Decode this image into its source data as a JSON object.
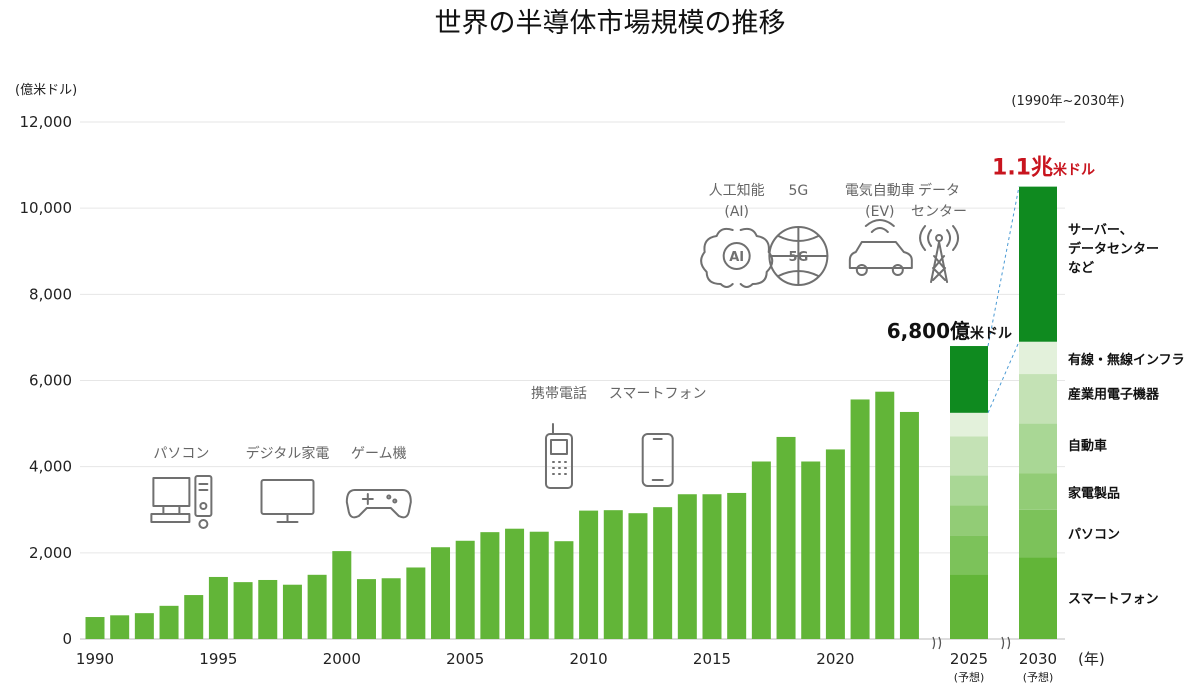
{
  "chart_data": {
    "type": "bar",
    "title": "世界の半導体市場規模の推移",
    "ylabel": "(億米ドル)",
    "xlabel": "(年)",
    "range_note": "(1990年~2030年)",
    "ylim": [
      0,
      12000
    ],
    "yticks": [
      "0",
      "2,000",
      "4,000",
      "6,000",
      "8,000",
      "10,000",
      "12,000"
    ],
    "ytick_values": [
      0,
      2000,
      4000,
      6000,
      8000,
      10000,
      12000
    ],
    "x": [
      1990,
      1991,
      1992,
      1993,
      1994,
      1995,
      1996,
      1997,
      1998,
      1999,
      2000,
      2001,
      2002,
      2003,
      2004,
      2005,
      2006,
      2007,
      2008,
      2009,
      2010,
      2011,
      2012,
      2013,
      2014,
      2015,
      2016,
      2017,
      2018,
      2019,
      2020,
      2021,
      2022,
      2023
    ],
    "values": [
      510,
      550,
      600,
      770,
      1020,
      1440,
      1320,
      1370,
      1260,
      1490,
      2040,
      1390,
      1410,
      1660,
      2130,
      2280,
      2480,
      2560,
      2490,
      2270,
      2980,
      2990,
      2920,
      3060,
      3360,
      3360,
      3390,
      4120,
      4690,
      4120,
      4400,
      5560,
      5740,
      5270
    ],
    "xticks": [
      "1990",
      "1995",
      "2000",
      "2005",
      "2010",
      "2015",
      "2020"
    ],
    "xtick_values": [
      1990,
      1995,
      2000,
      2005,
      2010,
      2015,
      2020
    ],
    "bar_color": "#62b538",
    "forecast": [
      {
        "year_label": "2025",
        "note": "(予想)",
        "total": 6800,
        "total_label": "6,800億",
        "total_unit": "米ドル",
        "segments": [
          {
            "name": "スマートフォン",
            "value": 1500,
            "color": "#62b538"
          },
          {
            "name": "パソコン",
            "value": 900,
            "color": "#7cc25a"
          },
          {
            "name": "家電製品",
            "value": 700,
            "color": "#92cc76"
          },
          {
            "name": "自動車",
            "value": 700,
            "color": "#a9d795"
          },
          {
            "name": "産業用電子機器",
            "value": 900,
            "color": "#c4e2b5"
          },
          {
            "name": "有線・無線インフラ",
            "value": 550,
            "color": "#e3f1db"
          },
          {
            "name": "サーバー、データセンターなど",
            "value": 1550,
            "color": "#0f8a1f"
          }
        ]
      },
      {
        "year_label": "2030",
        "note": "(予想)",
        "total": 10500,
        "total_label": "1.1兆",
        "total_unit": "米ドル",
        "segments": [
          {
            "name": "スマートフォン",
            "value": 1900,
            "color": "#62b538"
          },
          {
            "name": "パソコン",
            "value": 1100,
            "color": "#7cc25a"
          },
          {
            "name": "家電製品",
            "value": 850,
            "color": "#92cc76"
          },
          {
            "name": "自動車",
            "value": 1150,
            "color": "#a9d795"
          },
          {
            "name": "産業用電子機器",
            "value": 1150,
            "color": "#c4e2b5"
          },
          {
            "name": "有線・無線インフラ",
            "value": 750,
            "color": "#e3f1db"
          },
          {
            "name": "サーバー、データセンターなど",
            "value": 3600,
            "color": "#0f8a1f"
          }
        ]
      }
    ],
    "segment_labels": [
      {
        "lines": [
          "サーバー、",
          "データセンター",
          "など"
        ],
        "value_mid": 9100
      },
      {
        "lines": [
          "有線・無線インフラ"
        ],
        "value_mid": 6500
      },
      {
        "lines": [
          "産業用電子機器"
        ],
        "value_mid": 5700
      },
      {
        "lines": [
          "自動車"
        ],
        "value_mid": 4500
      },
      {
        "lines": [
          "家電製品"
        ],
        "value_mid": 3400
      },
      {
        "lines": [
          "パソコン"
        ],
        "value_mid": 2450
      },
      {
        "lines": [
          "スマートフォン"
        ],
        "value_mid": 950
      }
    ],
    "annotations": [
      {
        "name": "pc",
        "label": "パソコン",
        "icon": "desktop-pc-icon",
        "year": 1993.5
      },
      {
        "name": "digital-appliance",
        "label": "デジタル家電",
        "icon": "monitor-icon",
        "year": 1997.8
      },
      {
        "name": "game",
        "label": "ゲーム機",
        "icon": "gamepad-icon",
        "year": 2001.5
      },
      {
        "name": "mobile",
        "label": "携帯電話",
        "icon": "feature-phone-icon",
        "year": 2008.8
      },
      {
        "name": "smartphone",
        "label": "スマートフォン",
        "icon": "smartphone-icon",
        "year": 2012.8
      },
      {
        "name": "ai",
        "label": "人工知能",
        "sub": "(AI)",
        "icon": "ai-brain-icon",
        "year": 2016.0
      },
      {
        "name": "5g",
        "label": "5G",
        "sub": "",
        "icon": "5g-globe-icon",
        "year": 2018.5
      },
      {
        "name": "ev",
        "label": "電気自動車",
        "sub": "(EV)",
        "icon": "ev-car-icon",
        "year": 2021.8
      },
      {
        "name": "datacenter",
        "label": "データ",
        "sub": "センター",
        "icon": "signal-tower-icon",
        "year": 2024.2
      }
    ]
  }
}
